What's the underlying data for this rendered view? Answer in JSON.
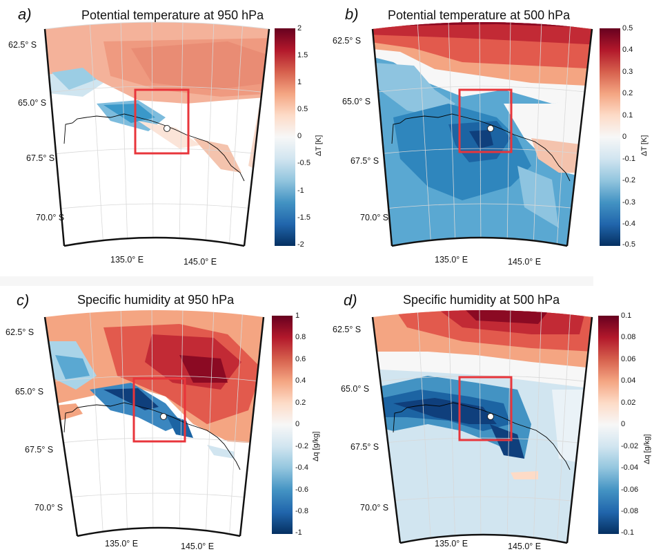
{
  "panels": [
    {
      "id": "a",
      "label": "a)",
      "title": "Potential temperature at 950 hPa",
      "lat_labels": [
        "62.5° S",
        "65.0° S",
        "67.5° S",
        "70.0° S"
      ],
      "lon_labels": [
        "135.0° E",
        "145.0° E"
      ],
      "colorbar": {
        "ticks": [
          "2",
          "1.5",
          "1",
          "0.5",
          "0",
          "-0.5",
          "-1",
          "-1.5",
          "-2"
        ],
        "unit": "ΔT [K]"
      }
    },
    {
      "id": "b",
      "label": "b)",
      "title": "Potential temperature at 500 hPa",
      "lat_labels": [
        "62.5° S",
        "65.0° S",
        "67.5° S",
        "70.0° S"
      ],
      "lon_labels": [
        "135.0° E",
        "145.0° E"
      ],
      "colorbar": {
        "ticks": [
          "0.5",
          "0.4",
          "0.3",
          "0.2",
          "0.1",
          "0",
          "-0.1",
          "-0.2",
          "-0.3",
          "-0.4",
          "-0.5"
        ],
        "unit": "ΔT [K]"
      }
    },
    {
      "id": "c",
      "label": "c)",
      "title": "Specific humidity at 950 hPa",
      "lat_labels": [
        "62.5° S",
        "65.0° S",
        "67.5° S",
        "70.0° S"
      ],
      "lon_labels": [
        "135.0° E",
        "145.0° E"
      ],
      "colorbar": {
        "ticks": [
          "1",
          "0.8",
          "0.6",
          "0.4",
          "0.2",
          "0",
          "-0.2",
          "-0.4",
          "-0.6",
          "-0.8",
          "-1"
        ],
        "unit": "Δq [g/kg]"
      }
    },
    {
      "id": "d",
      "label": "d)",
      "title": "Specific humidity at 500 hPa",
      "lat_labels": [
        "62.5° S",
        "65.0° S",
        "67.5° S",
        "70.0° S"
      ],
      "lon_labels": [
        "135.0° E",
        "145.0° E"
      ],
      "colorbar": {
        "ticks": [
          "0.1",
          "0.08",
          "0.06",
          "0.04",
          "0.02",
          "0",
          "-0.02",
          "-0.04",
          "-0.06",
          "-0.08",
          "-0.1"
        ],
        "unit": "Δq [g/kg]"
      }
    }
  ],
  "colors": {
    "box": "#e8353b",
    "high": "#67001f",
    "low": "#053061",
    "zero": "#f7f7f7"
  }
}
